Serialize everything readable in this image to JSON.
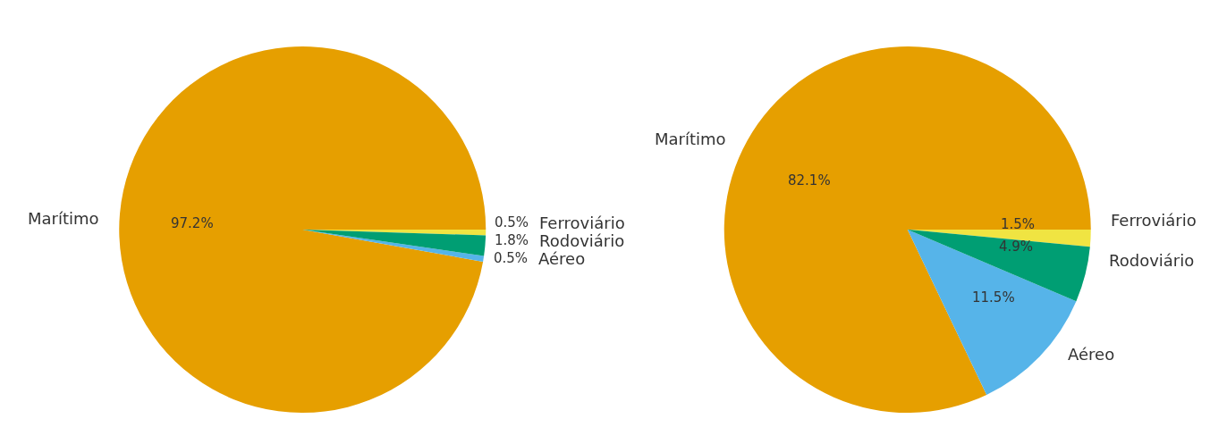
{
  "chart_data": [
    {
      "type": "pie",
      "categories": [
        "Ferroviário",
        "Marítimo",
        "Aéreo",
        "Rodoviário"
      ],
      "values": [
        0.5,
        97.2,
        0.5,
        1.8
      ],
      "colors": [
        "#f0e442",
        "#e69f00",
        "#56b4e9",
        "#009e73"
      ],
      "value_labels": [
        "0.5%",
        "97.2%",
        "0.5%",
        "1.8%"
      ]
    },
    {
      "type": "pie",
      "categories": [
        "Ferroviário",
        "Marítimo",
        "Aéreo",
        "Rodoviário"
      ],
      "values": [
        1.5,
        82.1,
        11.5,
        4.9
      ],
      "colors": [
        "#f0e442",
        "#e69f00",
        "#56b4e9",
        "#009e73"
      ],
      "value_labels": [
        "1.5%",
        "82.1%",
        "11.5%",
        "4.9%"
      ]
    }
  ]
}
